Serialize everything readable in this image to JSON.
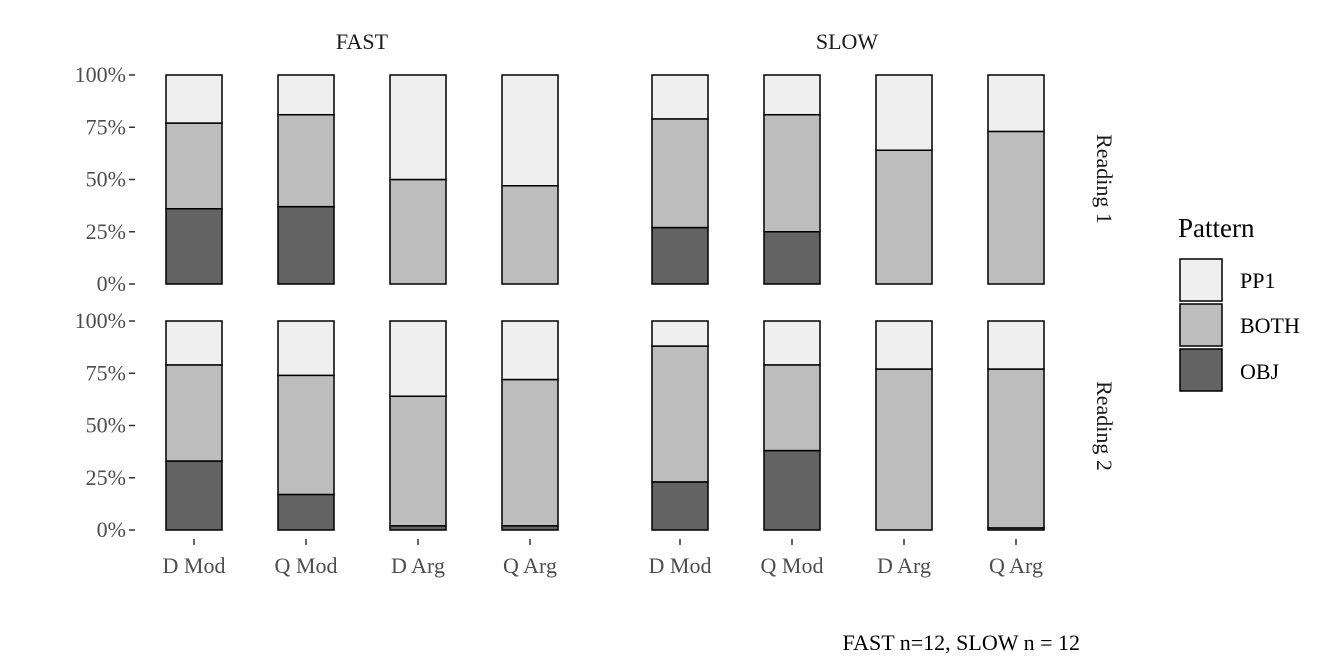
{
  "chart_data": {
    "type": "bar",
    "stacked": true,
    "normalized": true,
    "categories": [
      "D Mod",
      "Q Mod",
      "D Arg",
      "Q Arg"
    ],
    "columns": [
      "FAST",
      "SLOW"
    ],
    "rows": [
      "Reading 1",
      "Reading 2"
    ],
    "y_ticks": [
      "0%",
      "25%",
      "50%",
      "75%",
      "100%"
    ],
    "ylim": [
      0,
      100
    ],
    "legend": {
      "title": "Pattern",
      "position": "right",
      "items": [
        {
          "name": "PP1",
          "color": "#efefef"
        },
        {
          "name": "BOTH",
          "color": "#bdbdbd"
        },
        {
          "name": "OBJ",
          "color": "#636363"
        }
      ]
    },
    "caption": "FAST n=12, SLOW n = 12",
    "panels": [
      {
        "row": "Reading 1",
        "column": "FAST",
        "series": [
          {
            "name": "OBJ",
            "values": [
              36,
              37,
              0,
              0
            ]
          },
          {
            "name": "BOTH",
            "values": [
              41,
              44,
              50,
              47
            ]
          },
          {
            "name": "PP1",
            "values": [
              23,
              19,
              50,
              53
            ]
          }
        ]
      },
      {
        "row": "Reading 1",
        "column": "SLOW",
        "series": [
          {
            "name": "OBJ",
            "values": [
              27,
              25,
              0,
              0
            ]
          },
          {
            "name": "BOTH",
            "values": [
              52,
              56,
              64,
              73
            ]
          },
          {
            "name": "PP1",
            "values": [
              21,
              19,
              36,
              27
            ]
          }
        ]
      },
      {
        "row": "Reading 2",
        "column": "FAST",
        "series": [
          {
            "name": "OBJ",
            "values": [
              33,
              17,
              2,
              2
            ]
          },
          {
            "name": "BOTH",
            "values": [
              46,
              57,
              62,
              70
            ]
          },
          {
            "name": "PP1",
            "values": [
              21,
              26,
              36,
              28
            ]
          }
        ]
      },
      {
        "row": "Reading 2",
        "column": "SLOW",
        "series": [
          {
            "name": "OBJ",
            "values": [
              23,
              38,
              0,
              1
            ]
          },
          {
            "name": "BOTH",
            "values": [
              65,
              41,
              77,
              76
            ]
          },
          {
            "name": "PP1",
            "values": [
              12,
              21,
              23,
              23
            ]
          }
        ]
      }
    ],
    "grid": false
  }
}
